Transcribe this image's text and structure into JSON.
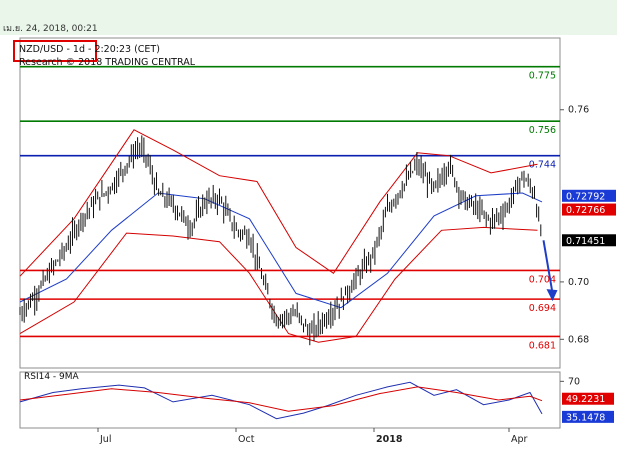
{
  "topbar": {
    "date_text": "เม.ย. 24, 2018, 00:21"
  },
  "header": {
    "ticker_text": "NZD/USD - 1d - 2:20:23 (CET)",
    "research_text": "Research © 2018 TRADING CENTRAL"
  },
  "chart_data": [
    {
      "type": "candlestick",
      "title": "NZD/USD - 1d - 2:20:23 (CET)",
      "subtitle": "Research © 2018 TRADING CENTRAL",
      "ylim": [
        0.67,
        0.785
      ],
      "y_ticks": [
        0.76,
        0.7,
        0.68
      ],
      "x_ticks": [
        "Jul",
        "Oct",
        "2018",
        "Apr"
      ],
      "series_price_path": [
        [
          "2017-05-10",
          0.689
        ],
        [
          "2017-05-20",
          0.695
        ],
        [
          "2017-06-01",
          0.705
        ],
        [
          "2017-06-10",
          0.712
        ],
        [
          "2017-06-20",
          0.722
        ],
        [
          "2017-07-01",
          0.729
        ],
        [
          "2017-07-10",
          0.733
        ],
        [
          "2017-07-20",
          0.741
        ],
        [
          "2017-07-28",
          0.747
        ],
        [
          "2017-08-02",
          0.744
        ],
        [
          "2017-08-10",
          0.731
        ],
        [
          "2017-08-20",
          0.727
        ],
        [
          "2017-09-01",
          0.719
        ],
        [
          "2017-09-10",
          0.728
        ],
        [
          "2017-09-20",
          0.729
        ],
        [
          "2017-10-01",
          0.718
        ],
        [
          "2017-10-10",
          0.716
        ],
        [
          "2017-10-20",
          0.699
        ],
        [
          "2017-10-28",
          0.687
        ],
        [
          "2017-11-10",
          0.689
        ],
        [
          "2017-11-20",
          0.682
        ],
        [
          "2017-12-01",
          0.688
        ],
        [
          "2017-12-10",
          0.693
        ],
        [
          "2017-12-20",
          0.701
        ],
        [
          "2018-01-01",
          0.71
        ],
        [
          "2018-01-10",
          0.725
        ],
        [
          "2018-01-20",
          0.733
        ],
        [
          "2018-01-30",
          0.741
        ],
        [
          "2018-02-10",
          0.732
        ],
        [
          "2018-02-20",
          0.741
        ],
        [
          "2018-03-01",
          0.729
        ],
        [
          "2018-03-10",
          0.726
        ],
        [
          "2018-03-20",
          0.721
        ],
        [
          "2018-03-30",
          0.725
        ],
        [
          "2018-04-10",
          0.737
        ],
        [
          "2018-04-18",
          0.731
        ],
        [
          "2018-04-23",
          0.7145
        ]
      ],
      "bollinger_upper": [
        [
          "2017-05-10",
          0.702
        ],
        [
          "2017-06-15",
          0.722
        ],
        [
          "2017-07-25",
          0.753
        ],
        [
          "2017-08-20",
          0.746
        ],
        [
          "2017-09-20",
          0.737
        ],
        [
          "2017-10-15",
          0.735
        ],
        [
          "2017-11-10",
          0.712
        ],
        [
          "2017-12-05",
          0.703
        ],
        [
          "2018-01-05",
          0.728
        ],
        [
          "2018-01-30",
          0.745
        ],
        [
          "2018-02-20",
          0.744
        ],
        [
          "2018-03-20",
          0.738
        ],
        [
          "2018-04-20",
          0.741
        ]
      ],
      "bollinger_lower": [
        [
          "2017-05-10",
          0.682
        ],
        [
          "2017-06-15",
          0.693
        ],
        [
          "2017-07-20",
          0.717
        ],
        [
          "2017-08-20",
          0.716
        ],
        [
          "2017-09-20",
          0.714
        ],
        [
          "2017-10-10",
          0.703
        ],
        [
          "2017-11-05",
          0.682
        ],
        [
          "2017-11-25",
          0.679
        ],
        [
          "2017-12-20",
          0.681
        ],
        [
          "2018-01-15",
          0.701
        ],
        [
          "2018-02-15",
          0.718
        ],
        [
          "2018-03-15",
          0.719
        ],
        [
          "2018-04-20",
          0.718
        ]
      ],
      "moving_average": [
        [
          "2017-05-10",
          0.693
        ],
        [
          "2017-06-10",
          0.701
        ],
        [
          "2017-07-10",
          0.718
        ],
        [
          "2017-08-10",
          0.731
        ],
        [
          "2017-09-10",
          0.729
        ],
        [
          "2017-10-10",
          0.722
        ],
        [
          "2017-11-10",
          0.696
        ],
        [
          "2017-12-10",
          0.691
        ],
        [
          "2018-01-10",
          0.703
        ],
        [
          "2018-02-10",
          0.723
        ],
        [
          "2018-03-10",
          0.73
        ],
        [
          "2018-04-10",
          0.731
        ],
        [
          "2018-04-23",
          0.7279
        ]
      ],
      "h_lines": [
        {
          "value": 0.775,
          "label": "0.775",
          "color": "#007a00"
        },
        {
          "value": 0.756,
          "label": "0.756",
          "color": "#007a00"
        },
        {
          "value": 0.744,
          "label": "0.744",
          "color": "#0a1fb0"
        },
        {
          "value": 0.704,
          "label": "0.704",
          "color": "#e00000"
        },
        {
          "value": 0.694,
          "label": "0.694",
          "color": "#e00000"
        },
        {
          "value": 0.681,
          "label": "0.681",
          "color": "#e00000"
        }
      ],
      "price_tags": [
        {
          "value": 0.72792,
          "label": "0.72792",
          "bg": "#1a3ad6",
          "fg": "#ffffff"
        },
        {
          "value": 0.72766,
          "label": "0.72766",
          "bg": "#e00000",
          "fg": "#ffffff"
        },
        {
          "value": 0.71451,
          "label": "0.71451",
          "bg": "#000000",
          "fg": "#ffffff"
        }
      ],
      "forecast_arrow": {
        "from": [
          "2018-04-24",
          0.7145
        ],
        "to": [
          "2018-04-30",
          0.694
        ]
      },
      "colors": {
        "price": "#111111",
        "bands": "#d40000",
        "ma": "#1f3ec8"
      }
    },
    {
      "type": "line",
      "title": "RSI14 - 9MA",
      "ylim": [
        20,
        80
      ],
      "y_ticks": [
        70
      ],
      "series": [
        {
          "name": "RSI14",
          "color": "#1f2fb0",
          "points": [
            [
              "2017-05-10",
              48
            ],
            [
              "2017-06-01",
              58
            ],
            [
              "2017-06-20",
              62
            ],
            [
              "2017-07-15",
              66
            ],
            [
              "2017-08-01",
              63
            ],
            [
              "2017-08-20",
              48
            ],
            [
              "2017-09-15",
              55
            ],
            [
              "2017-10-10",
              45
            ],
            [
              "2017-10-28",
              30
            ],
            [
              "2017-11-15",
              36
            ],
            [
              "2017-12-01",
              44
            ],
            [
              "2017-12-20",
              55
            ],
            [
              "2018-01-10",
              64
            ],
            [
              "2018-01-25",
              69
            ],
            [
              "2018-02-10",
              55
            ],
            [
              "2018-02-25",
              61
            ],
            [
              "2018-03-15",
              45
            ],
            [
              "2018-04-01",
              50
            ],
            [
              "2018-04-15",
              58
            ],
            [
              "2018-04-23",
              35.1478
            ]
          ]
        },
        {
          "name": "9MA",
          "color": "#d40000",
          "points": [
            [
              "2017-05-10",
              50
            ],
            [
              "2017-06-10",
              56
            ],
            [
              "2017-07-10",
              62
            ],
            [
              "2017-08-10",
              58
            ],
            [
              "2017-09-10",
              52
            ],
            [
              "2017-10-10",
              47
            ],
            [
              "2017-11-05",
              38
            ],
            [
              "2017-12-05",
              44
            ],
            [
              "2018-01-05",
              57
            ],
            [
              "2018-01-30",
              64
            ],
            [
              "2018-02-25",
              58
            ],
            [
              "2018-03-25",
              50
            ],
            [
              "2018-04-15",
              54
            ],
            [
              "2018-04-23",
              49.2231
            ]
          ]
        }
      ],
      "value_tags": [
        {
          "value": 49.2231,
          "label": "49.2231",
          "bg": "#e00000",
          "fg": "#ffffff"
        },
        {
          "value": 35.1478,
          "label": "35.1478",
          "bg": "#1a3ad6",
          "fg": "#ffffff"
        }
      ]
    }
  ]
}
